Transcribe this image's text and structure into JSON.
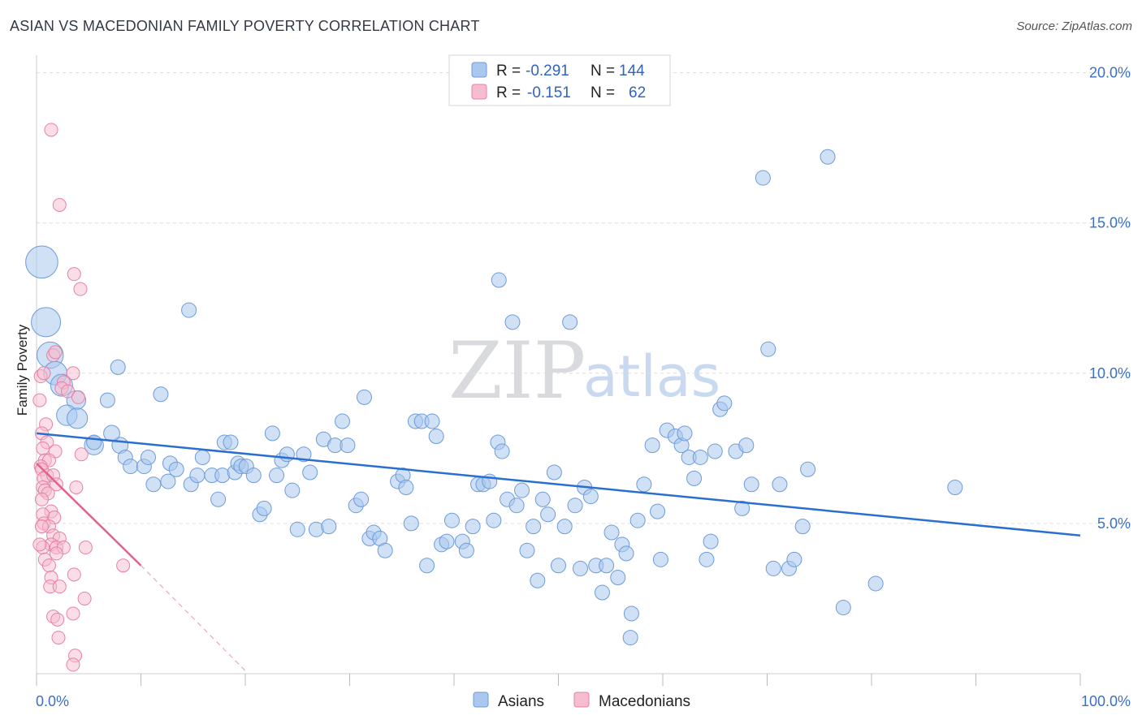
{
  "title": "ASIAN VS MACEDONIAN FAMILY POVERTY CORRELATION CHART",
  "source": "Source: ZipAtlas.com",
  "watermark": {
    "zip": "ZIP",
    "atlas": "atlas"
  },
  "colors": {
    "asians_fill": "#aac8ee",
    "asians_stroke": "#6d9bd9",
    "asians_line": "#2a6fd0",
    "macedonians_fill": "#f6bcd0",
    "macedonians_stroke": "#e880a4",
    "macedonians_line": "#e0638e",
    "tick_text": "#3a70c8",
    "grid": "#dddddd"
  },
  "legend": {
    "rows": [
      {
        "r_label": "R =",
        "r_value": "-0.291",
        "n_label": "N =",
        "n_value": "144"
      },
      {
        "r_label": "R =",
        "r_value": "-0.151",
        "n_label": "N =",
        "n_value": "62"
      }
    ]
  },
  "bottom_legend": [
    {
      "label": "Asians"
    },
    {
      "label": "Macedonians"
    }
  ],
  "chart_data": {
    "type": "scatter",
    "title": "ASIAN VS MACEDONIAN FAMILY POVERTY CORRELATION CHART",
    "xlabel": "",
    "ylabel": "Family Poverty",
    "xlim": [
      0,
      100
    ],
    "ylim": [
      0,
      20.8
    ],
    "x_tick_labels": [
      "0.0%",
      "100.0%"
    ],
    "y_ticks": [
      5,
      10,
      15,
      20
    ],
    "y_tick_labels": [
      "5.0%",
      "10.0%",
      "15.0%",
      "20.0%"
    ],
    "grid": "horizontal dashed",
    "legend_position": "top-center",
    "series": [
      {
        "name": "Asians",
        "r": -0.291,
        "n": 144,
        "trend": {
          "x0": 0,
          "y0": 8.0,
          "x1": 100,
          "y1": 4.6
        },
        "points": [
          [
            0.5,
            13.7,
            2.2
          ],
          [
            0.9,
            11.7,
            2.0
          ],
          [
            1.3,
            10.6,
            1.8
          ],
          [
            1.8,
            10.0,
            1.6
          ],
          [
            2.4,
            9.6,
            1.5
          ],
          [
            3.8,
            9.1,
            1.3
          ],
          [
            2.9,
            8.6,
            1.4
          ],
          [
            3.9,
            8.5,
            1.4
          ],
          [
            5.5,
            7.6,
            1.3
          ],
          [
            8.0,
            7.6,
            1.1
          ],
          [
            7.2,
            8.0,
            1.1
          ],
          [
            14.6,
            12.1,
            1.0
          ],
          [
            7.8,
            10.2,
            1.0
          ],
          [
            11.9,
            9.3,
            1.0
          ],
          [
            6.8,
            9.1,
            1.0
          ],
          [
            5.5,
            7.7,
            1.0
          ],
          [
            8.5,
            7.2,
            1.0
          ],
          [
            9.0,
            6.9,
            1.0
          ],
          [
            10.3,
            6.9,
            1.0
          ],
          [
            10.7,
            7.2,
            1.0
          ],
          [
            11.2,
            6.3,
            1.0
          ],
          [
            12.6,
            6.4,
            1.0
          ],
          [
            12.8,
            7.0,
            1.0
          ],
          [
            13.4,
            6.8,
            1.0
          ],
          [
            14.8,
            6.3,
            1.0
          ],
          [
            15.4,
            6.6,
            1.0
          ],
          [
            15.9,
            7.2,
            1.0
          ],
          [
            16.8,
            6.6,
            1.0
          ],
          [
            17.4,
            5.8,
            1.0
          ],
          [
            17.8,
            6.6,
            1.0
          ],
          [
            18.0,
            7.7,
            1.0
          ],
          [
            18.6,
            7.7,
            1.0
          ],
          [
            19.0,
            6.7,
            1.0
          ],
          [
            19.3,
            7.0,
            1.0
          ],
          [
            19.6,
            6.9,
            1.0
          ],
          [
            20.1,
            6.9,
            1.0
          ],
          [
            20.8,
            6.6,
            1.0
          ],
          [
            21.4,
            5.3,
            1.0
          ],
          [
            21.8,
            5.5,
            1.0
          ],
          [
            22.6,
            8.0,
            1.0
          ],
          [
            23.0,
            6.6,
            1.0
          ],
          [
            23.5,
            7.1,
            1.0
          ],
          [
            24.0,
            7.3,
            1.0
          ],
          [
            24.5,
            6.1,
            1.0
          ],
          [
            25.0,
            4.8,
            1.0
          ],
          [
            25.6,
            7.3,
            1.0
          ],
          [
            26.2,
            6.7,
            1.0
          ],
          [
            26.8,
            4.8,
            1.0
          ],
          [
            27.5,
            7.8,
            1.0
          ],
          [
            28.0,
            4.9,
            1.0
          ],
          [
            28.6,
            7.6,
            1.0
          ],
          [
            29.3,
            8.4,
            1.0
          ],
          [
            29.8,
            7.6,
            1.0
          ],
          [
            30.6,
            5.6,
            1.0
          ],
          [
            31.1,
            5.8,
            1.0
          ],
          [
            31.4,
            9.2,
            1.0
          ],
          [
            31.9,
            4.5,
            1.0
          ],
          [
            32.3,
            4.7,
            1.0
          ],
          [
            32.9,
            4.5,
            1.0
          ],
          [
            33.4,
            4.1,
            1.0
          ],
          [
            34.6,
            6.4,
            1.0
          ],
          [
            35.1,
            6.6,
            1.0
          ],
          [
            35.4,
            6.2,
            1.0
          ],
          [
            35.9,
            5.0,
            1.0
          ],
          [
            36.3,
            8.4,
            1.0
          ],
          [
            36.9,
            8.4,
            1.0
          ],
          [
            37.4,
            3.6,
            1.0
          ],
          [
            37.9,
            8.4,
            1.0
          ],
          [
            38.3,
            7.9,
            1.0
          ],
          [
            38.8,
            4.3,
            1.0
          ],
          [
            39.3,
            4.4,
            1.0
          ],
          [
            39.8,
            5.1,
            1.0
          ],
          [
            40.8,
            4.4,
            1.0
          ],
          [
            41.2,
            4.1,
            1.0
          ],
          [
            41.8,
            4.9,
            1.0
          ],
          [
            42.3,
            6.3,
            1.0
          ],
          [
            42.8,
            6.3,
            1.0
          ],
          [
            43.4,
            6.4,
            1.0
          ],
          [
            43.8,
            5.1,
            1.0
          ],
          [
            44.2,
            7.7,
            1.0
          ],
          [
            44.6,
            7.4,
            1.0
          ],
          [
            44.3,
            13.1,
            1.0
          ],
          [
            45.1,
            5.8,
            1.0
          ],
          [
            45.6,
            11.7,
            1.0
          ],
          [
            46.0,
            5.6,
            1.0
          ],
          [
            46.5,
            6.1,
            1.0
          ],
          [
            47.0,
            4.1,
            1.0
          ],
          [
            47.6,
            4.9,
            1.0
          ],
          [
            48.0,
            3.1,
            1.0
          ],
          [
            48.5,
            5.8,
            1.0
          ],
          [
            49.0,
            5.3,
            1.0
          ],
          [
            49.6,
            6.7,
            1.0
          ],
          [
            50.0,
            3.6,
            1.0
          ],
          [
            50.6,
            4.9,
            1.0
          ],
          [
            51.1,
            11.7,
            1.0
          ],
          [
            51.6,
            5.6,
            1.0
          ],
          [
            52.1,
            3.5,
            1.0
          ],
          [
            52.5,
            6.2,
            1.0
          ],
          [
            53.1,
            5.9,
            1.0
          ],
          [
            53.6,
            3.6,
            1.0
          ],
          [
            54.2,
            2.7,
            1.0
          ],
          [
            54.6,
            3.6,
            1.0
          ],
          [
            55.1,
            4.7,
            1.0
          ],
          [
            55.7,
            3.2,
            1.0
          ],
          [
            56.1,
            4.3,
            1.0
          ],
          [
            56.5,
            4.0,
            1.0
          ],
          [
            57.0,
            2.0,
            1.0
          ],
          [
            56.9,
            1.2,
            1.0
          ],
          [
            57.6,
            5.1,
            1.0
          ],
          [
            58.2,
            6.3,
            1.0
          ],
          [
            59.0,
            7.6,
            1.0
          ],
          [
            59.5,
            5.4,
            1.0
          ],
          [
            59.8,
            3.8,
            1.0
          ],
          [
            60.4,
            8.1,
            1.0
          ],
          [
            61.2,
            7.9,
            1.0
          ],
          [
            61.8,
            7.6,
            1.0
          ],
          [
            62.1,
            8.0,
            1.0
          ],
          [
            62.5,
            7.2,
            1.0
          ],
          [
            63.0,
            6.5,
            1.0
          ],
          [
            63.6,
            7.2,
            1.0
          ],
          [
            64.2,
            3.8,
            1.0
          ],
          [
            64.6,
            4.4,
            1.0
          ],
          [
            65.0,
            7.4,
            1.0
          ],
          [
            65.5,
            8.8,
            1.0
          ],
          [
            65.9,
            9.0,
            1.0
          ],
          [
            67.0,
            7.4,
            1.0
          ],
          [
            67.6,
            5.5,
            1.0
          ],
          [
            68.0,
            7.6,
            1.0
          ],
          [
            68.5,
            6.3,
            1.0
          ],
          [
            69.6,
            16.5,
            1.0
          ],
          [
            70.1,
            10.8,
            1.0
          ],
          [
            70.6,
            3.5,
            1.0
          ],
          [
            71.2,
            6.3,
            1.0
          ],
          [
            72.1,
            3.5,
            1.0
          ],
          [
            72.6,
            3.8,
            1.0
          ],
          [
            73.4,
            4.9,
            1.0
          ],
          [
            73.9,
            6.8,
            1.0
          ],
          [
            75.8,
            17.2,
            1.0
          ],
          [
            77.3,
            2.2,
            1.0
          ],
          [
            80.4,
            3.0,
            1.0
          ],
          [
            88.0,
            6.2,
            1.0
          ]
        ]
      },
      {
        "name": "Macedonians",
        "r": -0.151,
        "n": 62,
        "trend": {
          "x0": 0,
          "y0": 7.0,
          "x1": 10,
          "y1": 3.6
        },
        "trend_dashed": {
          "x0": 10,
          "y0": 3.6,
          "x1": 20,
          "y1": 0.1
        },
        "points": [
          [
            1.4,
            18.1
          ],
          [
            2.2,
            15.6
          ],
          [
            3.6,
            13.3
          ],
          [
            4.2,
            12.8
          ],
          [
            1.6,
            10.6
          ],
          [
            1.8,
            10.7
          ],
          [
            0.4,
            9.9
          ],
          [
            0.7,
            10.0
          ],
          [
            2.6,
            9.7
          ],
          [
            2.4,
            9.5
          ],
          [
            3.0,
            9.4
          ],
          [
            4.0,
            9.2
          ],
          [
            3.5,
            10.0
          ],
          [
            0.3,
            9.1
          ],
          [
            0.9,
            8.3
          ],
          [
            0.5,
            8.0
          ],
          [
            1.0,
            7.7
          ],
          [
            0.6,
            7.5
          ],
          [
            1.8,
            7.4
          ],
          [
            4.3,
            7.3
          ],
          [
            0.8,
            7.1
          ],
          [
            1.2,
            7.1
          ],
          [
            0.4,
            6.9
          ],
          [
            0.5,
            6.8
          ],
          [
            1.0,
            6.6
          ],
          [
            0.7,
            6.5
          ],
          [
            1.6,
            6.6
          ],
          [
            1.9,
            6.3
          ],
          [
            0.6,
            6.2
          ],
          [
            0.8,
            6.1
          ],
          [
            3.8,
            6.2
          ],
          [
            1.1,
            6.0
          ],
          [
            0.5,
            5.8
          ],
          [
            1.4,
            5.4
          ],
          [
            0.6,
            5.3
          ],
          [
            1.7,
            5.2
          ],
          [
            0.7,
            5.0
          ],
          [
            1.2,
            4.9
          ],
          [
            0.5,
            4.9
          ],
          [
            1.6,
            4.6
          ],
          [
            2.2,
            4.5
          ],
          [
            1.4,
            4.3
          ],
          [
            1.9,
            4.2
          ],
          [
            2.6,
            4.2
          ],
          [
            0.6,
            4.2
          ],
          [
            4.7,
            4.2
          ],
          [
            0.8,
            3.8
          ],
          [
            1.2,
            3.6
          ],
          [
            8.3,
            3.6
          ],
          [
            1.4,
            3.2
          ],
          [
            3.6,
            3.3
          ],
          [
            1.3,
            2.9
          ],
          [
            2.2,
            2.9
          ],
          [
            4.6,
            2.5
          ],
          [
            1.6,
            1.9
          ],
          [
            2.0,
            1.8
          ],
          [
            3.5,
            2.0
          ],
          [
            2.1,
            1.2
          ],
          [
            3.7,
            0.6
          ],
          [
            3.5,
            0.3
          ],
          [
            0.3,
            4.3
          ],
          [
            1.9,
            4.0
          ]
        ]
      }
    ]
  }
}
